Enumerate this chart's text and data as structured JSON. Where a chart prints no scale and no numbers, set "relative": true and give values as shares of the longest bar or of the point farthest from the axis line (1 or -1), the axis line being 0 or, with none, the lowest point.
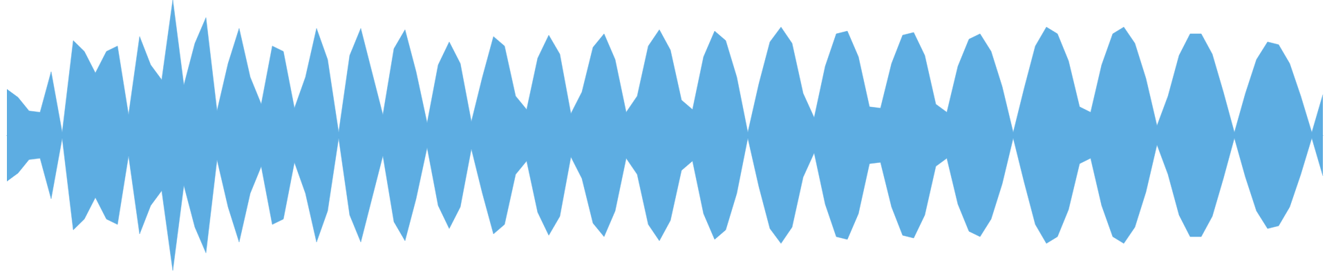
{
  "chart_data": {
    "type": "area",
    "relative": true,
    "categories": [
      null,
      null,
      null,
      null,
      null,
      null,
      null,
      null,
      null,
      null,
      null,
      null,
      null,
      null,
      null,
      null,
      null,
      null,
      null,
      null,
      null,
      null,
      null,
      null,
      null,
      null,
      null,
      null,
      null,
      null,
      null,
      null,
      null,
      null,
      null,
      null,
      null,
      null,
      null,
      null,
      null,
      null,
      null,
      null,
      null,
      null,
      null,
      null,
      null,
      null,
      null,
      null,
      null,
      null,
      null,
      null,
      null,
      null,
      null,
      null,
      null,
      null,
      null,
      null,
      null,
      null,
      null,
      null,
      null,
      null,
      null,
      null,
      null,
      null,
      null,
      null,
      null,
      null,
      null,
      null,
      null,
      null,
      null,
      null,
      null,
      null,
      null,
      null,
      null,
      null,
      null,
      null,
      null,
      null,
      null,
      null,
      null,
      null,
      null,
      null,
      null,
      null,
      null,
      null,
      null,
      null,
      null,
      null,
      null,
      null,
      null,
      null,
      null,
      null,
      null,
      null,
      null,
      null,
      null,
      null
    ],
    "series": [
      {
        "color": "#5dade2",
        "values": [
          0.34,
          0.28,
          0.18,
          0.17,
          0.47,
          0.02,
          0.7,
          0.62,
          0.46,
          0.62,
          0.66,
          0.15,
          0.73,
          0.52,
          0.41,
          1,
          0.37,
          0.68,
          0.87,
          0.18,
          0.53,
          0.79,
          0.43,
          0.23,
          0.66,
          0.62,
          0.2,
          0.43,
          0.79,
          0.56,
          0.02,
          0.59,
          0.79,
          0.47,
          0.15,
          0.64,
          0.78,
          0.47,
          0.09,
          0.52,
          0.69,
          0.53,
          0.1,
          0.43,
          0.73,
          0.66,
          0.29,
          0.19,
          0.57,
          0.74,
          0.6,
          0.16,
          0.32,
          0.65,
          0.75,
          0.56,
          0.17,
          0.29,
          0.66,
          0.78,
          0.63,
          0.26,
          0.19,
          0.58,
          0.77,
          0.7,
          0.43,
          0.02,
          0.38,
          0.69,
          0.8,
          0.68,
          0.31,
          0.13,
          0.51,
          0.75,
          0.77,
          0.58,
          0.21,
          0.2,
          0.53,
          0.74,
          0.76,
          0.59,
          0.23,
          0.17,
          0.51,
          0.71,
          0.75,
          0.62,
          0.36,
          0.02,
          0.35,
          0.66,
          0.8,
          0.75,
          0.55,
          0.21,
          0.17,
          0.52,
          0.75,
          0.8,
          0.68,
          0.42,
          0.07,
          0.29,
          0.59,
          0.75,
          0.75,
          0.6,
          0.32,
          0.02,
          0.31,
          0.56,
          0.69,
          0.67,
          0.53,
          0.29,
          0.02,
          0.3
        ]
      },
      {
        "color": "#5dade2",
        "values": [
          -0.34,
          -0.28,
          -0.18,
          -0.17,
          -0.47,
          -0.02,
          -0.7,
          -0.62,
          -0.46,
          -0.62,
          -0.66,
          -0.15,
          -0.73,
          -0.52,
          -0.41,
          -1,
          -0.37,
          -0.68,
          -0.87,
          -0.18,
          -0.53,
          -0.79,
          -0.43,
          -0.23,
          -0.66,
          -0.62,
          -0.2,
          -0.43,
          -0.79,
          -0.56,
          -0.02,
          -0.59,
          -0.79,
          -0.47,
          -0.15,
          -0.64,
          -0.78,
          -0.47,
          -0.09,
          -0.52,
          -0.69,
          -0.53,
          -0.1,
          -0.43,
          -0.73,
          -0.66,
          -0.29,
          -0.19,
          -0.57,
          -0.74,
          -0.6,
          -0.16,
          -0.32,
          -0.65,
          -0.75,
          -0.56,
          -0.17,
          -0.29,
          -0.66,
          -0.78,
          -0.63,
          -0.26,
          -0.19,
          -0.58,
          -0.77,
          -0.7,
          -0.43,
          -0.02,
          -0.38,
          -0.69,
          -0.8,
          -0.68,
          -0.31,
          -0.13,
          -0.51,
          -0.75,
          -0.77,
          -0.58,
          -0.21,
          -0.2,
          -0.53,
          -0.74,
          -0.76,
          -0.59,
          -0.23,
          -0.17,
          -0.51,
          -0.71,
          -0.75,
          -0.62,
          -0.36,
          -0.02,
          -0.35,
          -0.66,
          -0.8,
          -0.75,
          -0.55,
          -0.21,
          -0.17,
          -0.52,
          -0.75,
          -0.8,
          -0.68,
          -0.42,
          -0.07,
          -0.29,
          -0.59,
          -0.75,
          -0.75,
          -0.6,
          -0.32,
          -0.02,
          -0.31,
          -0.56,
          -0.69,
          -0.67,
          -0.53,
          -0.29,
          -0.02,
          -0.3
        ]
      }
    ]
  }
}
